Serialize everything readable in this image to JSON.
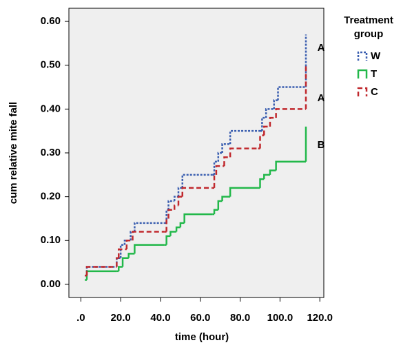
{
  "chart_data": {
    "type": "step",
    "x_label": "time (hour)",
    "y_label": "cum relative mite fall",
    "legend_title": "Treatment group",
    "xlim": [
      -6,
      122
    ],
    "ylim": [
      -0.03,
      0.63
    ],
    "xticks": [
      {
        "value": 0,
        "label": ".0"
      },
      {
        "value": 20,
        "label": "20.0"
      },
      {
        "value": 40,
        "label": "40.0"
      },
      {
        "value": 60,
        "label": "60.0"
      },
      {
        "value": 80,
        "label": "80.0"
      },
      {
        "value": 100,
        "label": "100.0"
      },
      {
        "value": 120,
        "label": "120.0"
      }
    ],
    "yticks": [
      {
        "value": 0,
        "label": "0.00"
      },
      {
        "value": 0.1,
        "label": "0.10"
      },
      {
        "value": 0.2,
        "label": "0.20"
      },
      {
        "value": 0.3,
        "label": "0.30"
      },
      {
        "value": 0.4,
        "label": "0.40"
      },
      {
        "value": 0.5,
        "label": "0.50"
      },
      {
        "value": 0.6,
        "label": "0.60"
      }
    ],
    "series": [
      {
        "name": "W",
        "color": "#3b5fb0",
        "dash": "3,2",
        "x": [
          2,
          3,
          18,
          20,
          22,
          25,
          27,
          42,
          43,
          44,
          47,
          49,
          51,
          66,
          67,
          69,
          71,
          75,
          90,
          91,
          93,
          97,
          99,
          113
        ],
        "values": [
          0.02,
          0.04,
          0.06,
          0.09,
          0.1,
          0.12,
          0.14,
          0.14,
          0.17,
          0.19,
          0.2,
          0.22,
          0.25,
          0.25,
          0.28,
          0.3,
          0.32,
          0.35,
          0.35,
          0.38,
          0.4,
          0.42,
          0.45,
          0.57
        ]
      },
      {
        "name": "T",
        "color": "#22b84a",
        "dash": "",
        "x": [
          2,
          3,
          18,
          19,
          21,
          24,
          27,
          42,
          43,
          45,
          48,
          50,
          52,
          66,
          67,
          69,
          71,
          75,
          89,
          90,
          92,
          95,
          98,
          113
        ],
        "values": [
          0.01,
          0.03,
          0.03,
          0.04,
          0.06,
          0.07,
          0.09,
          0.09,
          0.11,
          0.12,
          0.13,
          0.14,
          0.16,
          0.16,
          0.17,
          0.19,
          0.2,
          0.22,
          0.22,
          0.24,
          0.25,
          0.26,
          0.28,
          0.36
        ]
      },
      {
        "name": "C",
        "color": "#c0282d",
        "dash": "7,4",
        "x": [
          2,
          3,
          18,
          19,
          23,
          26,
          42,
          43,
          44,
          47,
          49,
          51,
          66,
          67,
          68,
          72,
          75,
          89,
          90,
          92,
          95,
          98,
          113
        ],
        "values": [
          0.02,
          0.04,
          0.06,
          0.08,
          0.1,
          0.12,
          0.12,
          0.15,
          0.17,
          0.18,
          0.2,
          0.22,
          0.22,
          0.25,
          0.27,
          0.29,
          0.31,
          0.31,
          0.34,
          0.36,
          0.38,
          0.4,
          0.5
        ]
      }
    ],
    "annotations": [
      "A",
      "A",
      "B"
    ]
  }
}
